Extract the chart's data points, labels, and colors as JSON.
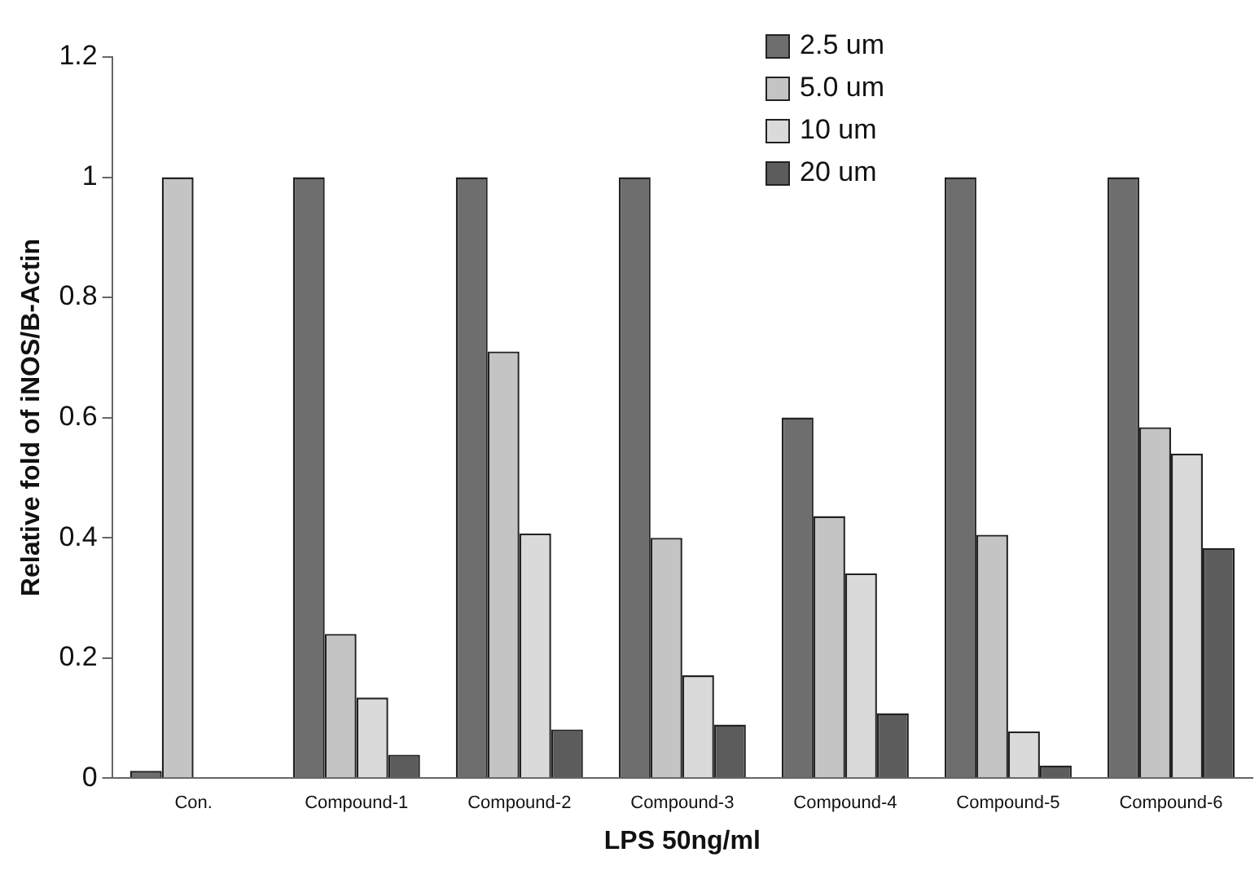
{
  "chart_data": {
    "type": "bar",
    "xlabel": "LPS 50ng/ml",
    "ylabel": "Relative fold of iNOS/B-Actin",
    "categories": [
      "Con.",
      "Compound-1",
      "Compound-2",
      "Compound-3",
      "Compound-4",
      "Compound-5",
      "Compound-6"
    ],
    "series": [
      {
        "name": "2.5 um",
        "color": "#6e6e6e",
        "values": [
          0.012,
          1,
          1,
          1,
          0.6,
          1,
          1
        ]
      },
      {
        "name": "5.0 um",
        "color": "#c4c4c4",
        "values": [
          1,
          0.24,
          0.71,
          0.4,
          0.436,
          0.405,
          0.584
        ]
      },
      {
        "name": "10 um",
        "color": "#dadada",
        "values": [
          null,
          0.134,
          0.407,
          0.171,
          0.341,
          0.078,
          0.54
        ]
      },
      {
        "name": "20 um",
        "color": "#5c5c5c",
        "values": [
          null,
          0.039,
          0.081,
          0.089,
          0.108,
          0.021,
          0.383
        ]
      }
    ],
    "ylim": [
      0,
      1.2
    ],
    "yticks": [
      0,
      0.2,
      0.4,
      0.6,
      0.8,
      1,
      1.2
    ],
    "grid": false,
    "legend": "top right"
  }
}
